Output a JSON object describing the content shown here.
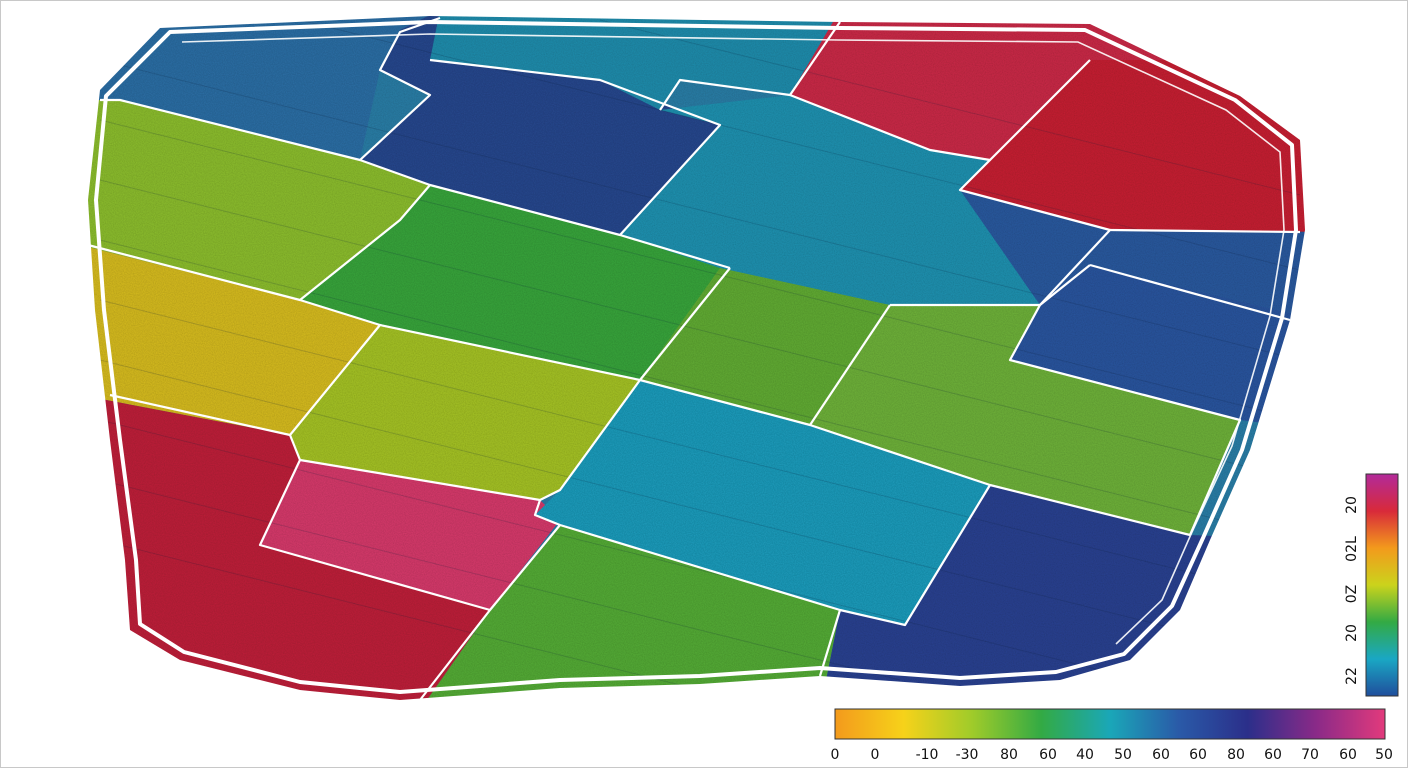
{
  "colors": {
    "boundary": "#ffffff",
    "zone_palette": {
      "blue": "#2a4f9a",
      "teal": "#1f8fb0",
      "cyan": "#1aa6c4",
      "green": "#3aa83a",
      "yellowgreen": "#9cc52a",
      "yellow": "#d9c21c",
      "red": "#c4223a",
      "magenta": "#d83a78",
      "navy": "#263f8c"
    }
  },
  "zones": [
    {
      "name": "zone-top-left-blue",
      "color": "#2c6fa6"
    },
    {
      "name": "zone-top-navy",
      "color": "#27488f"
    },
    {
      "name": "zone-top-teal",
      "color": "#1f8eae"
    },
    {
      "name": "zone-top-red",
      "color": "#cc2a48"
    },
    {
      "name": "zone-left-green",
      "color": "#8dbf2e"
    },
    {
      "name": "zone-center-green",
      "color": "#38a63c"
    },
    {
      "name": "zone-center-teal",
      "color": "#1e93b2"
    },
    {
      "name": "zone-right-red",
      "color": "#c81f33"
    },
    {
      "name": "zone-right-blue",
      "color": "#2a5aa0"
    },
    {
      "name": "zone-left-yellow",
      "color": "#d8bd1e"
    },
    {
      "name": "zone-mid-yellowgreen",
      "color": "#a6c424"
    },
    {
      "name": "zone-mid-green",
      "color": "#62ad34"
    },
    {
      "name": "zone-far-right-blue",
      "color": "#2a56a0"
    },
    {
      "name": "zone-right-green",
      "color": "#6fb33a"
    },
    {
      "name": "zone-bottom-red",
      "color": "#c0203a"
    },
    {
      "name": "zone-bottom-pink",
      "color": "#d83a6c"
    },
    {
      "name": "zone-bottom-cyan",
      "color": "#1c9dbd"
    },
    {
      "name": "zone-bottom-navy",
      "color": "#2a4292"
    },
    {
      "name": "zone-bottom-green",
      "color": "#55ad36"
    }
  ],
  "horizontal_legend": {
    "gradient": [
      "#f39a1c",
      "#f6d21a",
      "#9fcb2a",
      "#33aa44",
      "#1aa7b8",
      "#2a5aa8",
      "#2b2f8a",
      "#8a2a88",
      "#e23a7c"
    ],
    "ticks": [
      "0",
      "0",
      "-10",
      "-30",
      "80",
      "60",
      "40",
      "50",
      "60",
      "60",
      "80",
      "60",
      "70",
      "60",
      "50"
    ]
  },
  "vertical_legend": {
    "gradient": [
      "#1f4e9c",
      "#1aa7c4",
      "#33aa44",
      "#cbd31c",
      "#f39a1c",
      "#d82a3a",
      "#b22a9a"
    ],
    "ticks": [
      "22",
      "20",
      "0Z",
      "02L",
      "20"
    ]
  }
}
